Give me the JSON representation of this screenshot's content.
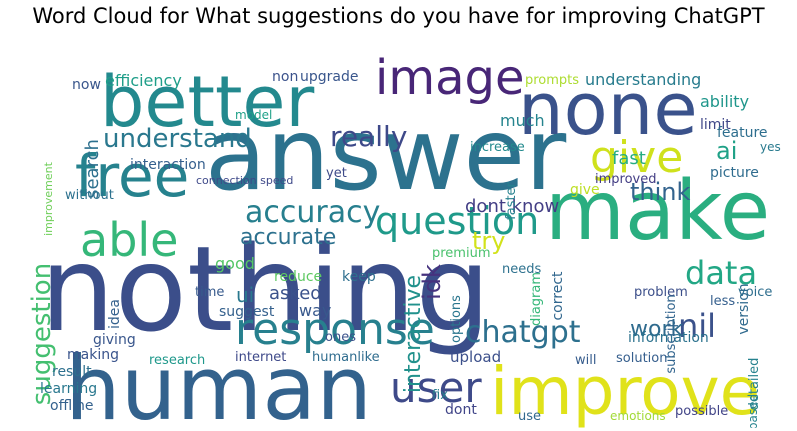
{
  "chart_data": {
    "type": "wordcloud",
    "title": "Word Cloud for What suggestions do you have for improving ChatGPT",
    "words": [
      {
        "text": "nothing",
        "color": "#3b4e8a"
      },
      {
        "text": "answer",
        "color": "#2c728e"
      },
      {
        "text": "human",
        "color": "#33628d"
      },
      {
        "text": "better",
        "color": "#23898e"
      },
      {
        "text": "make",
        "color": "#2aae80"
      },
      {
        "text": "none",
        "color": "#3a528b"
      },
      {
        "text": "improve",
        "color": "#e0e21a"
      },
      {
        "text": "free",
        "color": "#26828e"
      },
      {
        "text": "response",
        "color": "#27808e"
      },
      {
        "text": "image",
        "color": "#482677"
      },
      {
        "text": "able",
        "color": "#35b779"
      },
      {
        "text": "user",
        "color": "#3e4a89"
      },
      {
        "text": "give",
        "color": "#cfe11c"
      },
      {
        "text": "question",
        "color": "#1f9a8a"
      },
      {
        "text": "accuracy",
        "color": "#277f8e"
      },
      {
        "text": "data",
        "color": "#22a785"
      },
      {
        "text": "chatgpt",
        "color": "#2d708e"
      },
      {
        "text": "nil",
        "color": "#3b528b"
      },
      {
        "text": "understand",
        "color": "#2a788e"
      },
      {
        "text": "suggestion",
        "color": "#44bf70"
      },
      {
        "text": "really",
        "color": "#3e4989"
      },
      {
        "text": "think",
        "color": "#33638d"
      },
      {
        "text": "ai",
        "color": "#1fa187"
      },
      {
        "text": "accurate",
        "color": "#2d718e"
      },
      {
        "text": "work",
        "color": "#2f6b8e"
      },
      {
        "text": "interactive",
        "color": "#21918c"
      },
      {
        "text": "idk",
        "color": "#46327e"
      },
      {
        "text": "try",
        "color": "#d2e21b"
      },
      {
        "text": "dont know",
        "color": "#433e85"
      },
      {
        "text": "give",
        "color": "#bddf26"
      },
      {
        "text": "efficiency",
        "color": "#1f9e89"
      },
      {
        "text": "upgrade",
        "color": "#39568c"
      },
      {
        "text": "non",
        "color": "#3b528b"
      },
      {
        "text": "search",
        "color": "#2d708e"
      },
      {
        "text": "understanding",
        "color": "#287c8e"
      },
      {
        "text": "ability",
        "color": "#1f968b"
      },
      {
        "text": "limit",
        "color": "#3f4788"
      },
      {
        "text": "version",
        "color": "#306a8e"
      },
      {
        "text": "feature",
        "color": "#2e6e8e"
      },
      {
        "text": "fast",
        "color": "#27ad81"
      },
      {
        "text": "much",
        "color": "#25848e"
      },
      {
        "text": "picture",
        "color": "#2f6c8e"
      },
      {
        "text": "improved",
        "color": "#433d84"
      },
      {
        "text": "yes",
        "color": "#297a8e"
      },
      {
        "text": "interaction",
        "color": "#355f8d"
      },
      {
        "text": "increase",
        "color": "#238a8d"
      },
      {
        "text": "now",
        "color": "#39568c"
      },
      {
        "text": "prompts",
        "color": "#addc30"
      },
      {
        "text": "model",
        "color": "#1fa088"
      },
      {
        "text": "good",
        "color": "#55c667"
      },
      {
        "text": "ui",
        "color": "#2a788e"
      },
      {
        "text": "asked",
        "color": "#3b528b"
      },
      {
        "text": "way",
        "color": "#38588c"
      },
      {
        "text": "keep",
        "color": "#2e6f8e"
      },
      {
        "text": "suggest",
        "color": "#34608d"
      },
      {
        "text": "reduce",
        "color": "#5ec962"
      },
      {
        "text": "time",
        "color": "#375a8c"
      },
      {
        "text": "idea",
        "color": "#34618d"
      },
      {
        "text": "giving",
        "color": "#39568c"
      },
      {
        "text": "making",
        "color": "#3a548c"
      },
      {
        "text": "result",
        "color": "#2d708e"
      },
      {
        "text": "learning",
        "color": "#29788e"
      },
      {
        "text": "offline",
        "color": "#34618d"
      },
      {
        "text": "research",
        "color": "#1f988b"
      },
      {
        "text": "internet",
        "color": "#3e4989"
      },
      {
        "text": "humanlike",
        "color": "#2f6c8e"
      },
      {
        "text": "solution",
        "color": "#355e8d"
      },
      {
        "text": "information",
        "color": "#2c728e"
      },
      {
        "text": "upload",
        "color": "#3c508b"
      },
      {
        "text": "dont",
        "color": "#404588"
      },
      {
        "text": "use",
        "color": "#31688e"
      },
      {
        "text": "fix",
        "color": "#287d8e"
      },
      {
        "text": "will",
        "color": "#365c8d"
      },
      {
        "text": "emotions",
        "color": "#a2da37"
      },
      {
        "text": "possible",
        "color": "#414487"
      },
      {
        "text": "detailed",
        "color": "#26828e"
      },
      {
        "text": "based",
        "color": "#25838e"
      },
      {
        "text": "voice",
        "color": "#2e6e8e"
      },
      {
        "text": "less",
        "color": "#355f8d"
      },
      {
        "text": "problem",
        "color": "#3c4f8a"
      },
      {
        "text": "subscription",
        "color": "#32658e"
      },
      {
        "text": "correct",
        "color": "#31678e"
      },
      {
        "text": "options",
        "color": "#2a768e"
      },
      {
        "text": "needs",
        "color": "#2d718e"
      },
      {
        "text": "premium",
        "color": "#4ac16d"
      },
      {
        "text": "ones",
        "color": "#3b528b"
      },
      {
        "text": "without",
        "color": "#2c718e"
      },
      {
        "text": "yet",
        "color": "#3e4a89"
      },
      {
        "text": "faster",
        "color": "#26818e"
      },
      {
        "text": "diagram",
        "color": "#35b779"
      },
      {
        "text": "connection speed",
        "color": "#3e4989"
      },
      {
        "text": "improvement",
        "color": "#6ece58"
      }
    ]
  }
}
